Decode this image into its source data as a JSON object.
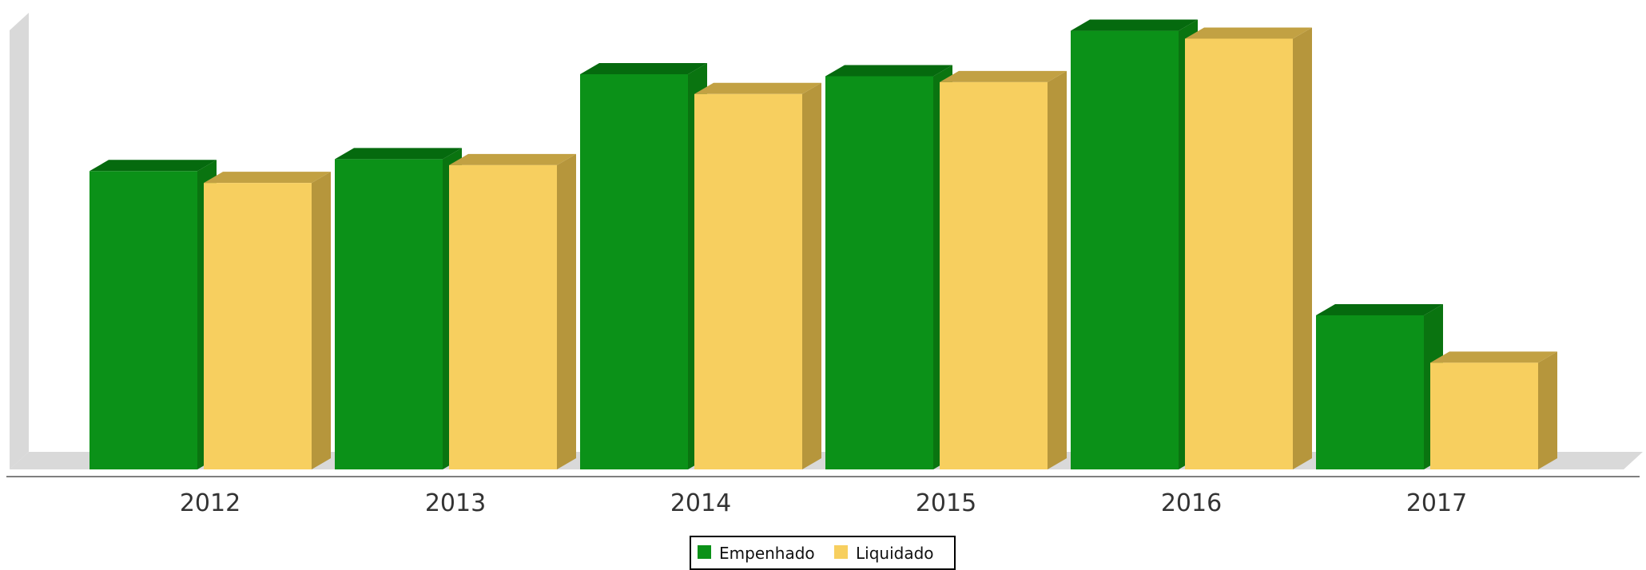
{
  "chart_data": {
    "type": "bar",
    "categories": [
      "2012",
      "2013",
      "2014",
      "2015",
      "2016",
      "2017"
    ],
    "series": [
      {
        "name": "Empenhado",
        "values": [
          75.5,
          78.5,
          100,
          99.5,
          111,
          39
        ],
        "colors": {
          "front": "#0B9118",
          "top": "#056A0E",
          "side": "#0A7410"
        }
      },
      {
        "name": "Liquidado",
        "values": [
          72.5,
          77,
          95,
          98,
          109,
          27
        ],
        "colors": {
          "front": "#F7CF5F",
          "top": "#C2A143",
          "side": "#B6963C"
        }
      }
    ],
    "title": "",
    "xlabel": "",
    "ylabel": "",
    "ylim": [
      0,
      120
    ],
    "grid": false,
    "legend_position": "bottom-center",
    "style": "3d-column"
  }
}
